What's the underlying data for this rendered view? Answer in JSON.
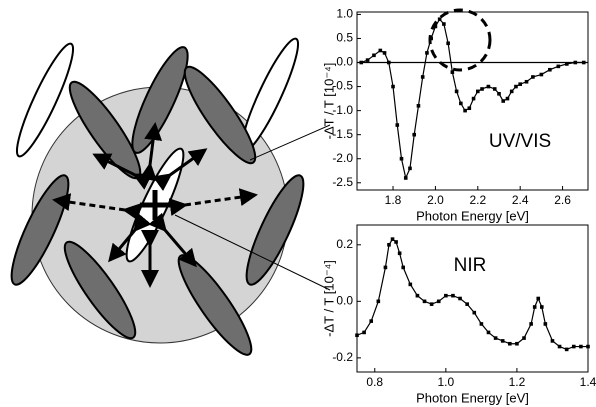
{
  "chart_data": [
    {
      "type": "line",
      "annotation": "UV/VIS",
      "xlabel": "Photon Energy [eV]",
      "ylabel": "-ΔT / T [10⁻⁴]",
      "xlim": [
        1.63,
        2.72
      ],
      "ylim": [
        -2.65,
        1.05
      ],
      "xticks": [
        1.8,
        {
          "value": 2,
          "label": "2.0"
        },
        2.2,
        2.4,
        2.6
      ],
      "yticks": [
        -2.5,
        {
          "value": -2,
          "label": "-2.0"
        },
        -1.5,
        {
          "value": -1,
          "label": "-1.0"
        },
        -0.5,
        {
          "value": 0,
          "label": "0.0"
        },
        0.5,
        {
          "value": 1,
          "label": "1.0"
        }
      ],
      "series": [
        {
          "color": "#000000",
          "x": [
            1.65,
            1.68,
            1.71,
            1.74,
            1.76,
            1.78,
            1.8,
            1.82,
            1.84,
            1.86,
            1.88,
            1.9,
            1.92,
            1.94,
            1.96,
            1.98,
            2.0,
            2.02,
            2.04,
            2.06,
            2.08,
            2.1,
            2.12,
            2.14,
            2.16,
            2.18,
            2.2,
            2.22,
            2.25,
            2.28,
            2.3,
            2.32,
            2.34,
            2.36,
            2.38,
            2.4,
            2.43,
            2.46,
            2.5,
            2.54,
            2.58,
            2.62,
            2.66,
            2.7
          ],
          "values": [
            0.0,
            0.05,
            0.15,
            0.25,
            0.2,
            0.0,
            -0.5,
            -1.3,
            -2.0,
            -2.4,
            -2.2,
            -1.5,
            -0.9,
            -0.3,
            0.2,
            0.5,
            0.75,
            0.9,
            0.8,
            0.4,
            -0.2,
            -0.6,
            -0.85,
            -1.0,
            -0.95,
            -0.75,
            -0.6,
            -0.55,
            -0.5,
            -0.55,
            -0.65,
            -0.8,
            -0.75,
            -0.6,
            -0.5,
            -0.45,
            -0.4,
            -0.3,
            -0.25,
            -0.15,
            -0.08,
            -0.03,
            0.0,
            0.0
          ]
        }
      ]
    },
    {
      "type": "line",
      "annotation": "NIR",
      "xlabel": "Photon Energy [eV]",
      "ylabel": "-ΔT / T [10⁻⁴]",
      "xlim": [
        0.75,
        1.4
      ],
      "ylim": [
        -0.25,
        0.27
      ],
      "xticks": [
        0.8,
        {
          "value": 1,
          "label": "1.0"
        },
        1.2,
        1.4
      ],
      "yticks": [
        -0.2,
        {
          "value": 0,
          "label": "0.0"
        },
        0.2
      ],
      "series": [
        {
          "color": "#000000",
          "x": [
            0.75,
            0.77,
            0.79,
            0.81,
            0.83,
            0.84,
            0.85,
            0.86,
            0.87,
            0.88,
            0.9,
            0.92,
            0.94,
            0.96,
            0.98,
            1.0,
            1.02,
            1.04,
            1.06,
            1.08,
            1.1,
            1.12,
            1.14,
            1.16,
            1.18,
            1.2,
            1.22,
            1.24,
            1.25,
            1.26,
            1.27,
            1.28,
            1.3,
            1.32,
            1.34,
            1.36,
            1.38,
            1.4
          ],
          "values": [
            -0.12,
            -0.11,
            -0.07,
            0.0,
            0.12,
            0.2,
            0.22,
            0.21,
            0.17,
            0.12,
            0.06,
            0.02,
            0.0,
            -0.01,
            0.0,
            0.02,
            0.02,
            0.01,
            -0.01,
            -0.04,
            -0.08,
            -0.11,
            -0.13,
            -0.14,
            -0.15,
            -0.15,
            -0.13,
            -0.08,
            -0.02,
            0.01,
            -0.02,
            -0.08,
            -0.14,
            -0.16,
            -0.17,
            -0.16,
            -0.16,
            -0.16
          ]
        }
      ]
    }
  ]
}
